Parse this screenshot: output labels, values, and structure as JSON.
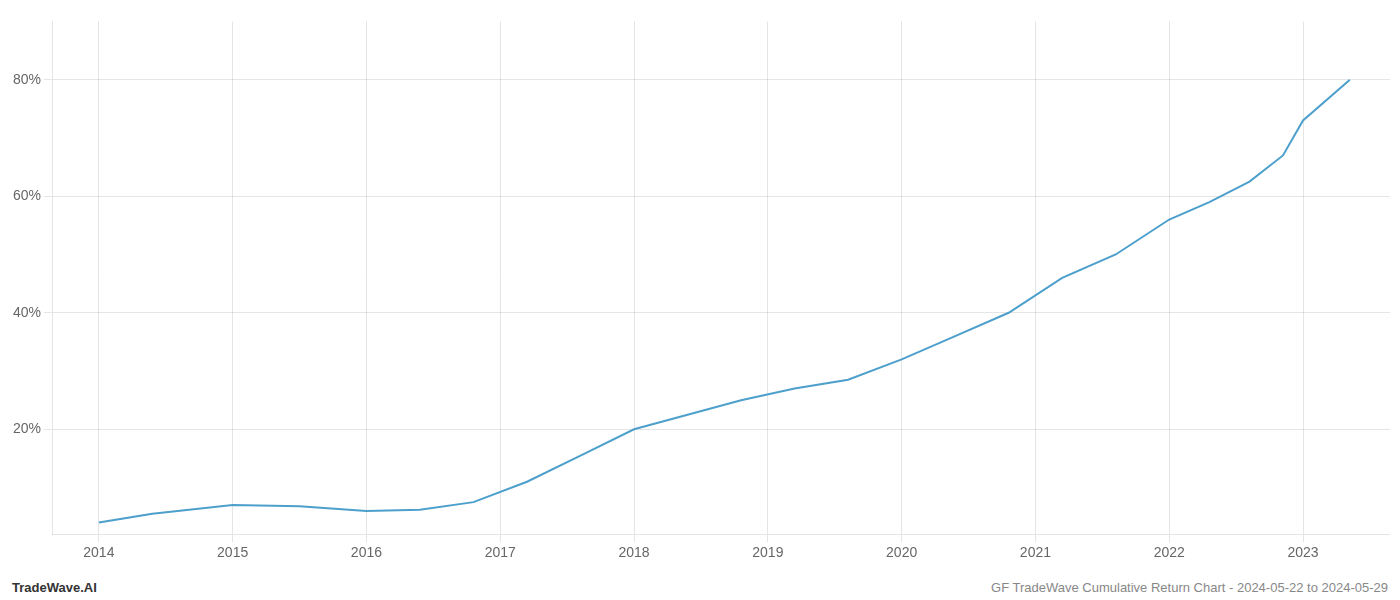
{
  "chart_data": {
    "type": "line",
    "x": [
      2014.0,
      2014.4,
      2015.0,
      2015.5,
      2016.0,
      2016.4,
      2016.8,
      2017.2,
      2017.6,
      2018.0,
      2018.4,
      2018.8,
      2019.2,
      2019.6,
      2020.0,
      2020.4,
      2020.8,
      2021.2,
      2021.6,
      2022.0,
      2022.3,
      2022.6,
      2022.85,
      2023.0,
      2023.35
    ],
    "values": [
      4.0,
      5.5,
      7.0,
      6.8,
      6.0,
      6.2,
      7.5,
      11.0,
      15.5,
      20.0,
      22.5,
      25.0,
      27.0,
      28.5,
      32.0,
      36.0,
      40.0,
      46.0,
      50.0,
      56.0,
      59.0,
      62.5,
      67.0,
      73.0,
      80.0
    ],
    "color": "#4d9fcc",
    "xlim": [
      2013.65,
      2023.65
    ],
    "xticks": [
      2014,
      2015,
      2016,
      2017,
      2018,
      2019,
      2020,
      2021,
      2022,
      2023
    ],
    "ylim": [
      2,
      90
    ],
    "yticks": [
      {
        "value": 20,
        "label": "20%"
      },
      {
        "value": 40,
        "label": "40%"
      },
      {
        "value": 60,
        "label": "60%"
      },
      {
        "value": 80,
        "label": "80%"
      }
    ],
    "grid": true,
    "annotations": [
      "TradeWave.AI",
      "GF TradeWave Cumulative Return Chart - 2024-05-22 to 2024-05-29"
    ]
  }
}
